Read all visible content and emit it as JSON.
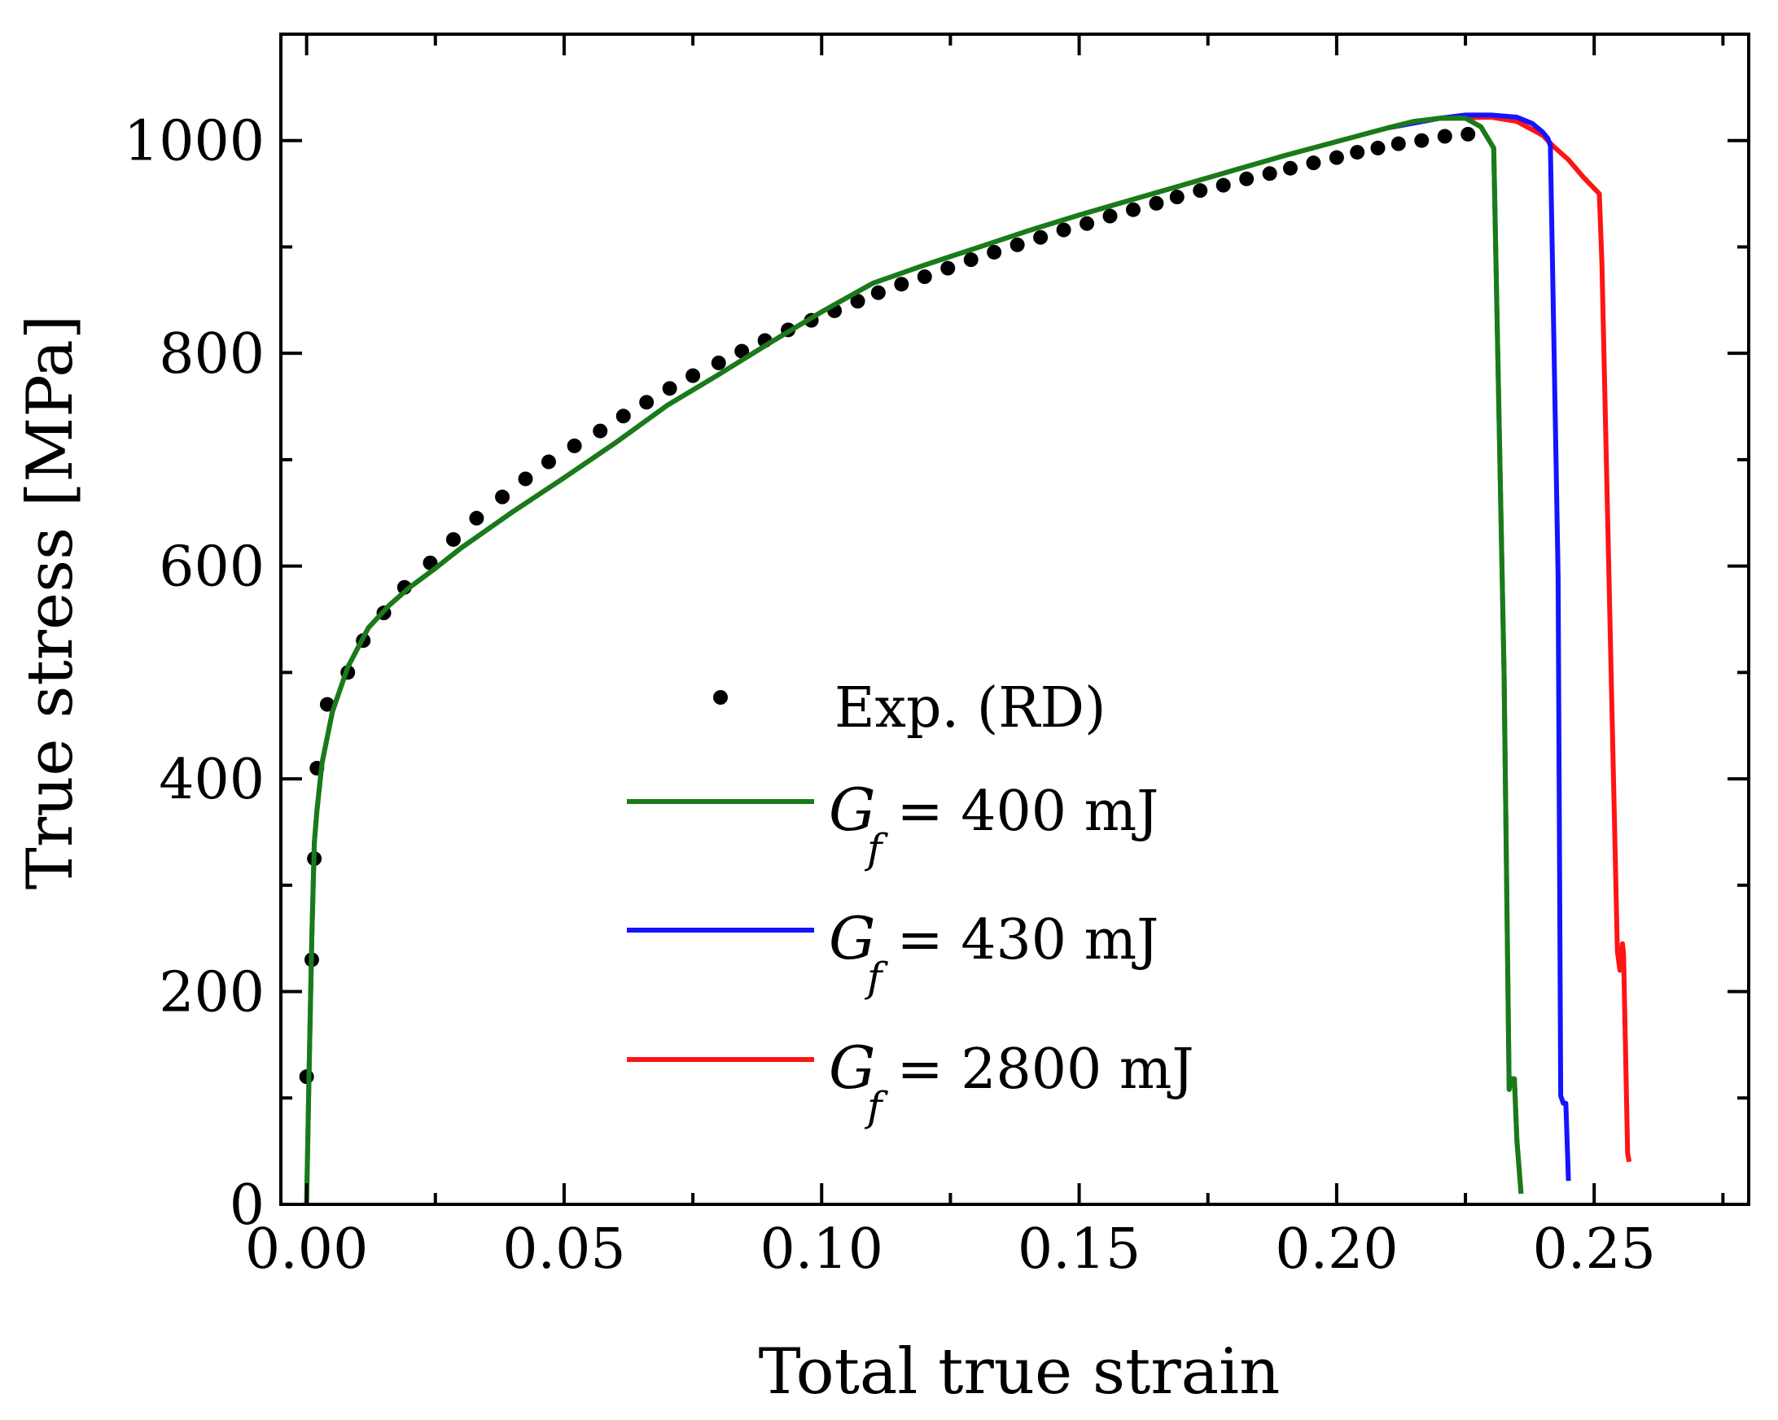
{
  "chart_data": {
    "type": "line",
    "title": "",
    "xlabel": "Total true strain",
    "ylabel": "True stress [MPa]",
    "xlim": [
      -0.005,
      0.28
    ],
    "ylim": [
      0,
      1100
    ],
    "xticks": [
      0.0,
      0.05,
      0.1,
      0.15,
      0.2,
      0.25
    ],
    "xtick_labels": [
      "0.00",
      "0.05",
      "0.10",
      "0.15",
      "0.20",
      "0.25"
    ],
    "yticks": [
      0,
      200,
      400,
      600,
      800,
      1000
    ],
    "ytick_labels": [
      "0",
      "200",
      "400",
      "600",
      "800",
      "1000"
    ],
    "grid": false,
    "legend_position": "center",
    "experimental": {
      "name": "Exp. (RD)",
      "color": "#000000",
      "points": [
        [
          0.0,
          120
        ],
        [
          0.001,
          230
        ],
        [
          0.0015,
          325
        ],
        [
          0.002,
          410
        ],
        [
          0.004,
          470
        ],
        [
          0.008,
          500
        ],
        [
          0.011,
          530
        ],
        [
          0.015,
          556
        ],
        [
          0.019,
          580
        ],
        [
          0.024,
          603
        ],
        [
          0.0285,
          625
        ],
        [
          0.033,
          645
        ],
        [
          0.038,
          665
        ],
        [
          0.0425,
          682
        ],
        [
          0.047,
          698
        ],
        [
          0.052,
          713
        ],
        [
          0.057,
          727
        ],
        [
          0.0615,
          741
        ],
        [
          0.066,
          754
        ],
        [
          0.0705,
          767
        ],
        [
          0.075,
          779
        ],
        [
          0.08,
          791
        ],
        [
          0.0845,
          802
        ],
        [
          0.089,
          812
        ],
        [
          0.0935,
          822
        ],
        [
          0.098,
          831
        ],
        [
          0.1025,
          840
        ],
        [
          0.107,
          849
        ],
        [
          0.111,
          857
        ],
        [
          0.1155,
          865
        ],
        [
          0.12,
          872
        ],
        [
          0.1245,
          880
        ],
        [
          0.129,
          888
        ],
        [
          0.1335,
          895
        ],
        [
          0.138,
          902
        ],
        [
          0.1425,
          909
        ],
        [
          0.147,
          916
        ],
        [
          0.1515,
          922
        ],
        [
          0.156,
          929
        ],
        [
          0.1605,
          935
        ],
        [
          0.165,
          941
        ],
        [
          0.169,
          947
        ],
        [
          0.1735,
          953
        ],
        [
          0.178,
          958
        ],
        [
          0.1825,
          964
        ],
        [
          0.187,
          969
        ],
        [
          0.191,
          974
        ],
        [
          0.1955,
          979
        ],
        [
          0.2,
          984
        ],
        [
          0.204,
          989
        ],
        [
          0.208,
          993
        ],
        [
          0.212,
          997
        ],
        [
          0.2165,
          1000
        ],
        [
          0.221,
          1004
        ],
        [
          0.2255,
          1006
        ]
      ]
    },
    "series": [
      {
        "name": "G_f = 400 mJ",
        "symbol": "G",
        "subscript": "f",
        "label_rest": " = 400 mJ",
        "color": "#1a7a1a",
        "x": [
          0.0,
          0.0005,
          0.001,
          0.0015,
          0.002,
          0.003,
          0.005,
          0.008,
          0.012,
          0.016,
          0.02,
          0.025,
          0.03,
          0.04,
          0.05,
          0.06,
          0.07,
          0.08,
          0.09,
          0.1,
          0.11,
          0.12,
          0.13,
          0.14,
          0.15,
          0.16,
          0.17,
          0.18,
          0.19,
          0.2,
          0.21,
          0.215,
          0.22,
          0.225,
          0.228,
          0.2305,
          0.2325,
          0.2335,
          0.234,
          0.2345,
          0.235,
          0.2358
        ],
        "y": [
          0,
          130,
          250,
          340,
          370,
          415,
          463,
          505,
          542,
          563,
          580,
          598,
          617,
          651,
          683,
          716,
          751,
          780,
          810,
          839,
          866,
          883,
          899,
          915,
          930,
          944,
          958,
          972,
          986,
          999,
          1012,
          1018,
          1021,
          1021,
          1013,
          993,
          500,
          108,
          118,
          118,
          60,
          10
        ]
      },
      {
        "name": "G_f = 430 mJ",
        "symbol": "G",
        "subscript": "f",
        "label_rest": " = 430 mJ",
        "color": "#1414ff",
        "x": [
          0.21,
          0.22,
          0.225,
          0.23,
          0.235,
          0.238,
          0.24,
          0.241,
          0.2415,
          0.243,
          0.2435,
          0.244,
          0.2445,
          0.245
        ],
        "y": [
          1012,
          1021,
          1024,
          1024,
          1022,
          1016,
          1008,
          1002,
          995,
          590,
          102,
          95,
          95,
          22
        ]
      },
      {
        "name": "G_f = 2800 mJ",
        "symbol": "G",
        "subscript": "f",
        "label_rest": " = 2800 mJ",
        "color": "#ff1414",
        "x": [
          0.21,
          0.22,
          0.23,
          0.235,
          0.24,
          0.242,
          0.245,
          0.248,
          0.251,
          0.2515,
          0.2545,
          0.255,
          0.2555,
          0.2557,
          0.2565,
          0.2568
        ],
        "y": [
          1012,
          1021,
          1022,
          1018,
          1005,
          995,
          982,
          965,
          950,
          885,
          238,
          220,
          245,
          235,
          48,
          40
        ]
      }
    ]
  }
}
